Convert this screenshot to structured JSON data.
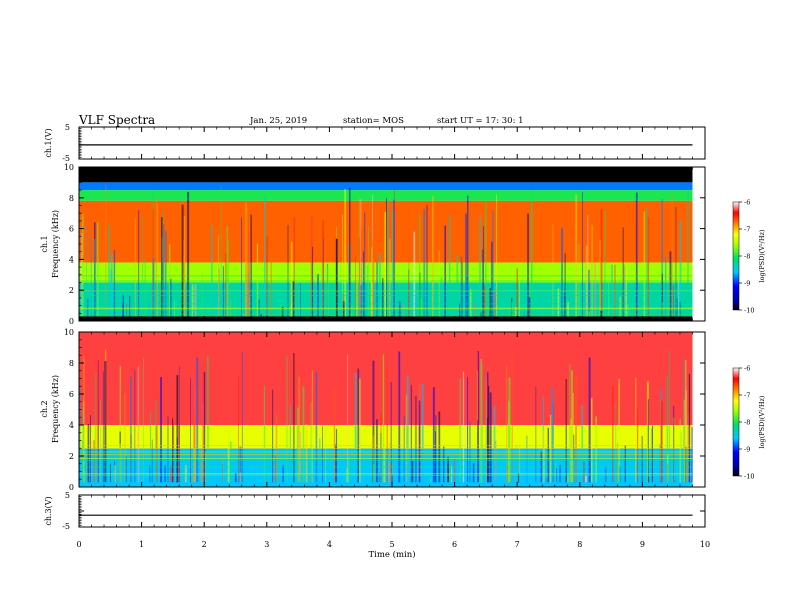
{
  "header": {
    "title": "VLF Spectra",
    "date": "Jan. 25, 2019",
    "station": "station= MOS",
    "start_ut": "start  UT =   17: 30: 1"
  },
  "chart_data": [
    {
      "type": "line",
      "panel": "ch1-waveform",
      "ylabel": "ch.1(V)",
      "ylim": [
        -5,
        5
      ],
      "yticks": [
        5,
        -5
      ],
      "xlim": [
        0,
        10
      ],
      "x": [
        0,
        9.8
      ],
      "series": [
        {
          "values": [
            -0.6,
            -0.6
          ],
          "color": "#000000"
        }
      ]
    },
    {
      "type": "heatmap",
      "panel": "ch1-spectrogram",
      "ylabel": "ch.1\nFrequency (kHz)",
      "ylim": [
        0,
        10
      ],
      "yticks": [
        0,
        2,
        4,
        6,
        8,
        10
      ],
      "xlim": [
        0,
        10
      ],
      "data_x_end": 9.8,
      "colorbar": {
        "label": "log(PSD)(V²/Hz)",
        "range": [
          -10,
          -6
        ],
        "ticks": [
          -6,
          -7,
          -8,
          -9,
          -10
        ]
      },
      "bands_khz": [
        {
          "from": 9.0,
          "to": 10.0,
          "level": -10.0
        },
        {
          "from": 8.5,
          "to": 9.0,
          "level": -8.8
        },
        {
          "from": 7.8,
          "to": 8.5,
          "level": -8.0
        },
        {
          "from": 3.8,
          "to": 7.8,
          "level": -6.7
        },
        {
          "from": 2.5,
          "to": 3.8,
          "level": -7.6
        },
        {
          "from": 0.3,
          "to": 2.5,
          "level": -8.3
        },
        {
          "from": 0.0,
          "to": 0.3,
          "level": -10.0
        }
      ]
    },
    {
      "type": "heatmap",
      "panel": "ch2-spectrogram",
      "ylabel": "ch.2\nFrequency (kHz)",
      "ylim": [
        0,
        10
      ],
      "yticks": [
        0,
        2,
        4,
        6,
        8,
        10
      ],
      "xlim": [
        0,
        10
      ],
      "data_x_end": 9.8,
      "colorbar": {
        "label": "log(PSD)(V²/Hz)",
        "range": [
          -10,
          -6
        ],
        "ticks": [
          -6,
          -7,
          -8,
          -9,
          -10
        ]
      },
      "bands_khz": [
        {
          "from": 4.0,
          "to": 10.0,
          "level": -6.3
        },
        {
          "from": 2.5,
          "to": 4.0,
          "level": -7.3
        },
        {
          "from": 0.0,
          "to": 2.5,
          "level": -8.6
        }
      ]
    },
    {
      "type": "line",
      "panel": "ch3-waveform",
      "ylabel": "ch.3(V)",
      "ylim": [
        -5,
        5
      ],
      "yticks": [
        5,
        0,
        -5
      ],
      "xlim": [
        0,
        10
      ],
      "xlabel": "Time (min)",
      "xticks": [
        0,
        1,
        2,
        3,
        4,
        5,
        6,
        7,
        8,
        9,
        10
      ],
      "x": [
        0,
        9.8
      ],
      "series": [
        {
          "values": [
            -1.3,
            -1.3
          ],
          "color": "#000000"
        }
      ]
    }
  ]
}
